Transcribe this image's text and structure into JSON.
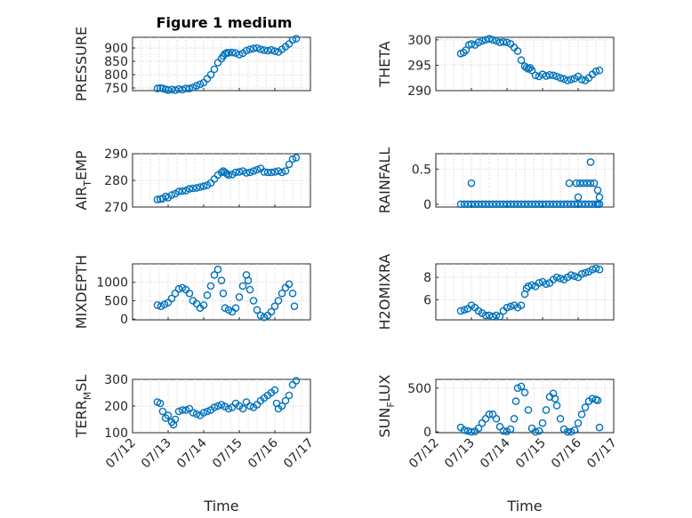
{
  "figure": {
    "title": "Figure 1 medium",
    "marker_color": "#0072BD"
  },
  "chart_data": [
    {
      "type": "scatter",
      "ylabel_main": "PRESSURE",
      "ylabel_sub": "",
      "ylabel_tail": "",
      "xlim": [
        0,
        5
      ],
      "ylim": [
        740,
        940
      ],
      "yticks": [
        750,
        800,
        850,
        900
      ],
      "xticks": [
        0,
        1,
        2,
        3,
        4,
        5
      ],
      "xticklabels": [
        "07/12",
        "07/13",
        "07/14",
        "07/15",
        "07/16",
        "07/17"
      ],
      "show_xticklabels": false,
      "xlabel": "",
      "x": [
        0.7,
        0.78,
        0.85,
        0.93,
        1.0,
        1.1,
        1.2,
        1.3,
        1.4,
        1.5,
        1.6,
        1.7,
        1.8,
        1.9,
        2.0,
        2.1,
        2.2,
        2.3,
        2.4,
        2.5,
        2.55,
        2.6,
        2.65,
        2.7,
        2.8,
        2.9,
        3.0,
        3.1,
        3.2,
        3.3,
        3.4,
        3.5,
        3.6,
        3.7,
        3.8,
        3.9,
        4.0,
        4.1,
        4.2,
        4.3,
        4.4,
        4.5,
        4.6
      ],
      "y": [
        748,
        750,
        748,
        745,
        742,
        744,
        742,
        746,
        744,
        748,
        748,
        752,
        758,
        764,
        770,
        785,
        800,
        820,
        845,
        860,
        870,
        878,
        882,
        882,
        883,
        881,
        875,
        880,
        890,
        895,
        898,
        900,
        895,
        892,
        890,
        893,
        888,
        885,
        895,
        905,
        915,
        930,
        935
      ]
    },
    {
      "type": "scatter",
      "ylabel_main": "THETA",
      "ylabel_sub": "",
      "ylabel_tail": "",
      "xlim": [
        0,
        5
      ],
      "ylim": [
        290,
        300.5
      ],
      "yticks": [
        290,
        295,
        300
      ],
      "xticks": [
        0,
        1,
        2,
        3,
        4,
        5
      ],
      "xticklabels": [
        "07/12",
        "07/13",
        "07/14",
        "07/15",
        "07/16",
        "07/17"
      ],
      "show_xticklabels": false,
      "xlabel": "",
      "x": [
        0.7,
        0.78,
        0.85,
        0.93,
        1.0,
        1.1,
        1.2,
        1.3,
        1.4,
        1.5,
        1.6,
        1.7,
        1.8,
        1.9,
        2.0,
        2.1,
        2.2,
        2.3,
        2.4,
        2.5,
        2.55,
        2.6,
        2.65,
        2.7,
        2.8,
        2.9,
        3.0,
        3.1,
        3.2,
        3.3,
        3.4,
        3.5,
        3.6,
        3.7,
        3.8,
        3.9,
        4.0,
        4.1,
        4.2,
        4.3,
        4.4,
        4.5,
        4.6
      ],
      "y": [
        297.3,
        297.5,
        298.0,
        299.0,
        299.2,
        299.0,
        299.5,
        299.8,
        300.0,
        300.2,
        300.0,
        299.8,
        299.5,
        299.6,
        299.5,
        299.2,
        298.5,
        297.8,
        296.0,
        294.8,
        294.5,
        294.3,
        294.5,
        294.0,
        293.0,
        292.8,
        293.2,
        292.9,
        293.1,
        293.0,
        292.8,
        292.5,
        292.3,
        292.0,
        292.2,
        292.4,
        292.8,
        292.2,
        292.0,
        292.5,
        293.2,
        293.8,
        294.0
      ]
    },
    {
      "type": "scatter",
      "ylabel_main": "AIR",
      "ylabel_sub": "T",
      "ylabel_tail": "EMP",
      "xlim": [
        0,
        5
      ],
      "ylim": [
        270,
        290
      ],
      "yticks": [
        270,
        280,
        290
      ],
      "xticks": [
        0,
        1,
        2,
        3,
        4,
        5
      ],
      "xticklabels": [
        "07/12",
        "07/13",
        "07/14",
        "07/15",
        "07/16",
        "07/17"
      ],
      "show_xticklabels": false,
      "xlabel": "",
      "x": [
        0.7,
        0.78,
        0.85,
        0.93,
        1.0,
        1.1,
        1.2,
        1.3,
        1.4,
        1.5,
        1.6,
        1.7,
        1.8,
        1.9,
        2.0,
        2.1,
        2.2,
        2.3,
        2.4,
        2.5,
        2.55,
        2.6,
        2.65,
        2.7,
        2.8,
        2.9,
        3.0,
        3.1,
        3.2,
        3.3,
        3.4,
        3.5,
        3.6,
        3.7,
        3.8,
        3.9,
        4.0,
        4.1,
        4.2,
        4.3,
        4.4,
        4.5,
        4.6
      ],
      "y": [
        272.8,
        273.0,
        273.2,
        274.0,
        273.5,
        274.5,
        275.0,
        275.8,
        276.0,
        276.2,
        276.8,
        277.0,
        277.2,
        277.5,
        277.8,
        278.2,
        279.0,
        280.5,
        282.0,
        283.0,
        283.5,
        283.0,
        282.5,
        282.0,
        282.2,
        283.0,
        283.2,
        283.5,
        282.8,
        283.0,
        283.5,
        284.0,
        284.5,
        283.2,
        283.0,
        283.0,
        283.2,
        283.5,
        283.0,
        283.5,
        286.0,
        288.0,
        288.5
      ]
    },
    {
      "type": "scatter",
      "ylabel_main": "RAINFALL",
      "ylabel_sub": "",
      "ylabel_tail": "",
      "xlim": [
        0,
        5
      ],
      "ylim": [
        -0.04,
        0.72
      ],
      "yticks": [
        0,
        0.5
      ],
      "yticklabels": [
        "0",
        "0.5"
      ],
      "xticks": [
        0,
        1,
        2,
        3,
        4,
        5
      ],
      "xticklabels": [
        "07/12",
        "07/13",
        "07/14",
        "07/15",
        "07/16",
        "07/17"
      ],
      "show_xticklabels": false,
      "xlabel": "",
      "x": [
        0.7,
        0.8,
        0.9,
        1.0,
        1.1,
        1.2,
        1.3,
        1.4,
        1.5,
        1.6,
        1.7,
        1.8,
        1.9,
        2.0,
        2.1,
        2.2,
        2.3,
        2.4,
        2.5,
        2.6,
        2.7,
        2.8,
        2.9,
        3.0,
        3.1,
        3.2,
        3.3,
        3.4,
        3.5,
        3.6,
        3.7,
        3.8,
        3.9,
        4.0,
        4.1,
        4.2,
        4.3,
        4.4,
        4.5,
        4.6,
        1.0,
        3.75,
        3.95,
        4.05,
        4.15,
        4.25,
        4.35,
        4.45,
        4.55,
        4.0,
        4.35,
        4.6,
        4.55
      ],
      "y": [
        0,
        0,
        0,
        0,
        0,
        0,
        0,
        0,
        0,
        0,
        0,
        0,
        0,
        0,
        0,
        0,
        0,
        0,
        0,
        0,
        0,
        0,
        0,
        0,
        0,
        0,
        0,
        0,
        0,
        0,
        0,
        0,
        0,
        0,
        0,
        0,
        0,
        0,
        0,
        0,
        0.3,
        0.3,
        0.3,
        0.3,
        0.3,
        0.3,
        0.3,
        0.3,
        0.2,
        0.1,
        0.6,
        0.1,
        0.0
      ]
    },
    {
      "type": "scatter",
      "ylabel_main": "MIXDEPTH",
      "ylabel_sub": "",
      "ylabel_tail": "",
      "xlim": [
        0,
        5
      ],
      "ylim": [
        -20,
        1500
      ],
      "yticks": [
        0,
        500,
        1000
      ],
      "xticks": [
        0,
        1,
        2,
        3,
        4,
        5
      ],
      "xticklabels": [
        "07/12",
        "07/13",
        "07/14",
        "07/15",
        "07/16",
        "07/17"
      ],
      "show_xticklabels": false,
      "xlabel": "",
      "x": [
        0.7,
        0.8,
        0.9,
        1.0,
        1.1,
        1.2,
        1.3,
        1.4,
        1.5,
        1.6,
        1.7,
        1.8,
        1.9,
        2.0,
        2.1,
        2.2,
        2.3,
        2.4,
        2.5,
        2.55,
        2.6,
        2.7,
        2.8,
        2.9,
        3.0,
        3.1,
        3.2,
        3.25,
        3.3,
        3.4,
        3.5,
        3.6,
        3.7,
        3.8,
        3.9,
        4.0,
        4.1,
        4.2,
        4.3,
        4.4,
        4.5,
        4.55
      ],
      "y": [
        380,
        350,
        400,
        450,
        560,
        700,
        820,
        850,
        800,
        700,
        500,
        420,
        300,
        380,
        650,
        900,
        1200,
        1350,
        1050,
        700,
        300,
        250,
        200,
        300,
        600,
        900,
        1200,
        1050,
        800,
        500,
        250,
        100,
        50,
        100,
        200,
        350,
        500,
        700,
        850,
        950,
        700,
        350
      ]
    },
    {
      "type": "scatter",
      "ylabel_main": "H2OMIXRA",
      "ylabel_sub": "",
      "ylabel_tail": "",
      "xlim": [
        0,
        5
      ],
      "ylim": [
        4.2,
        9.2
      ],
      "yticks": [
        6,
        8
      ],
      "xticks": [
        0,
        1,
        2,
        3,
        4,
        5
      ],
      "xticklabels": [
        "07/12",
        "07/13",
        "07/14",
        "07/15",
        "07/16",
        "07/17"
      ],
      "show_xticklabels": false,
      "xlabel": "",
      "x": [
        0.7,
        0.8,
        0.9,
        1.0,
        1.1,
        1.2,
        1.3,
        1.4,
        1.5,
        1.6,
        1.7,
        1.8,
        1.9,
        2.0,
        2.1,
        2.2,
        2.3,
        2.4,
        2.5,
        2.55,
        2.6,
        2.7,
        2.8,
        2.9,
        3.0,
        3.1,
        3.2,
        3.3,
        3.4,
        3.5,
        3.6,
        3.7,
        3.8,
        3.9,
        4.0,
        4.1,
        4.2,
        4.3,
        4.4,
        4.5,
        4.6
      ],
      "y": [
        5.0,
        5.1,
        5.2,
        5.5,
        5.3,
        5.0,
        4.8,
        4.6,
        4.6,
        4.5,
        4.6,
        4.5,
        5.0,
        5.3,
        5.4,
        5.5,
        5.3,
        5.5,
        6.5,
        7.0,
        7.2,
        7.3,
        7.2,
        7.5,
        7.6,
        7.4,
        7.5,
        7.8,
        8.0,
        7.9,
        7.8,
        8.0,
        8.2,
        8.1,
        8.0,
        8.3,
        8.4,
        8.5,
        8.7,
        8.8,
        8.7
      ]
    },
    {
      "type": "scatter",
      "ylabel_main": "TERR",
      "ylabel_sub": "M",
      "ylabel_tail": "SL",
      "xlim": [
        0,
        5
      ],
      "ylim": [
        100,
        300
      ],
      "yticks": [
        100,
        200,
        300
      ],
      "xticks": [
        0,
        1,
        2,
        3,
        4,
        5
      ],
      "xticklabels": [
        "07/12",
        "07/13",
        "07/14",
        "07/15",
        "07/16",
        "07/17"
      ],
      "show_xticklabels": true,
      "xlabel": "Time",
      "x": [
        0.7,
        0.78,
        0.85,
        0.93,
        1.0,
        1.1,
        1.15,
        1.2,
        1.3,
        1.4,
        1.5,
        1.6,
        1.7,
        1.8,
        1.9,
        2.0,
        2.1,
        2.2,
        2.3,
        2.4,
        2.5,
        2.6,
        2.7,
        2.8,
        2.9,
        3.0,
        3.1,
        3.2,
        3.3,
        3.4,
        3.5,
        3.6,
        3.7,
        3.8,
        3.9,
        4.0,
        4.05,
        4.1,
        4.2,
        4.3,
        4.4,
        4.5,
        4.6
      ],
      "y": [
        215,
        210,
        180,
        155,
        165,
        140,
        130,
        150,
        180,
        185,
        185,
        190,
        175,
        170,
        165,
        175,
        180,
        185,
        195,
        200,
        205,
        198,
        190,
        195,
        210,
        200,
        190,
        215,
        200,
        195,
        205,
        220,
        230,
        240,
        250,
        260,
        210,
        190,
        200,
        220,
        240,
        280,
        295
      ]
    },
    {
      "type": "scatter",
      "ylabel_main": "SUN",
      "ylabel_sub": "F",
      "ylabel_tail": "LUX",
      "xlim": [
        0,
        5
      ],
      "ylim": [
        -10,
        600
      ],
      "yticks": [
        0,
        500
      ],
      "xticks": [
        0,
        1,
        2,
        3,
        4,
        5
      ],
      "xticklabels": [
        "07/12",
        "07/13",
        "07/14",
        "07/15",
        "07/16",
        "07/17"
      ],
      "show_xticklabels": true,
      "xlabel": "Time",
      "x": [
        0.7,
        0.8,
        0.9,
        1.0,
        1.1,
        1.2,
        1.3,
        1.4,
        1.5,
        1.6,
        1.7,
        1.8,
        1.9,
        2.0,
        2.1,
        2.2,
        2.25,
        2.3,
        2.4,
        2.5,
        2.6,
        2.7,
        2.8,
        2.9,
        3.0,
        3.1,
        3.2,
        3.3,
        3.35,
        3.4,
        3.5,
        3.6,
        3.7,
        3.8,
        3.9,
        4.0,
        4.1,
        4.2,
        4.3,
        4.4,
        4.5,
        4.55,
        4.6
      ],
      "y": [
        50,
        20,
        10,
        0,
        5,
        40,
        100,
        150,
        200,
        200,
        150,
        60,
        10,
        5,
        30,
        150,
        350,
        500,
        520,
        450,
        250,
        40,
        0,
        10,
        100,
        250,
        400,
        440,
        380,
        300,
        150,
        30,
        0,
        0,
        20,
        100,
        200,
        280,
        350,
        380,
        370,
        360,
        50
      ]
    }
  ]
}
